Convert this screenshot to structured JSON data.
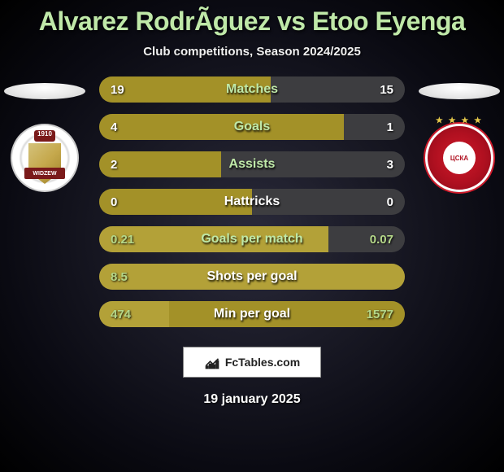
{
  "title": "Alvarez RodrÃ­guez vs Etoo Eyenga",
  "subtitle": "Club competitions, Season 2024/2025",
  "date": "19 january 2025",
  "footer_label": "FcTables.com",
  "left": {
    "flag_gradient": [
      "#ffffff",
      "#e8e8e8",
      "#cfcfcf"
    ],
    "badge_year": "1910",
    "badge_banner": "WIDZEW"
  },
  "right": {
    "flag_gradient": [
      "#ffffff",
      "#e8e8e8",
      "#cfcfcf"
    ],
    "badge_stars": "★ ★ ★ ★",
    "badge_inner": "ЦСКА"
  },
  "colors": {
    "track": "#3d3d40",
    "bar_olive": "#a39128",
    "bar_olive_light": "#b3a138",
    "bar_green": "#b5d889",
    "bar_green_soft": "#8fb86a",
    "label_green": "#bfe8a8",
    "label_white": "#ffffff"
  },
  "stats": [
    {
      "label": "Matches",
      "left_val": "19",
      "right_val": "15",
      "left_pct": 56,
      "right_pct": 44,
      "label_color": "label_green",
      "highlight": false
    },
    {
      "label": "Goals",
      "left_val": "4",
      "right_val": "1",
      "left_pct": 80,
      "right_pct": 20,
      "label_color": "label_green",
      "highlight": false
    },
    {
      "label": "Assists",
      "left_val": "2",
      "right_val": "3",
      "left_pct": 40,
      "right_pct": 60,
      "label_color": "label_green",
      "highlight": false
    },
    {
      "label": "Hattricks",
      "left_val": "0",
      "right_val": "0",
      "left_pct": 50,
      "right_pct": 50,
      "label_color": "label_white",
      "highlight": false
    },
    {
      "label": "Goals per match",
      "left_val": "0.21",
      "right_val": "0.07",
      "left_pct": 75,
      "right_pct": 25,
      "label_color": "label_green",
      "highlight": true
    },
    {
      "label": "Shots per goal",
      "left_val": "8.5",
      "right_val": "",
      "left_pct": 100,
      "right_pct": 0,
      "label_color": "label_white",
      "highlight": true
    },
    {
      "label": "Min per goal",
      "left_val": "474",
      "right_val": "1577",
      "left_pct": 23,
      "right_pct": 77,
      "label_color": "label_white",
      "highlight": true
    }
  ]
}
